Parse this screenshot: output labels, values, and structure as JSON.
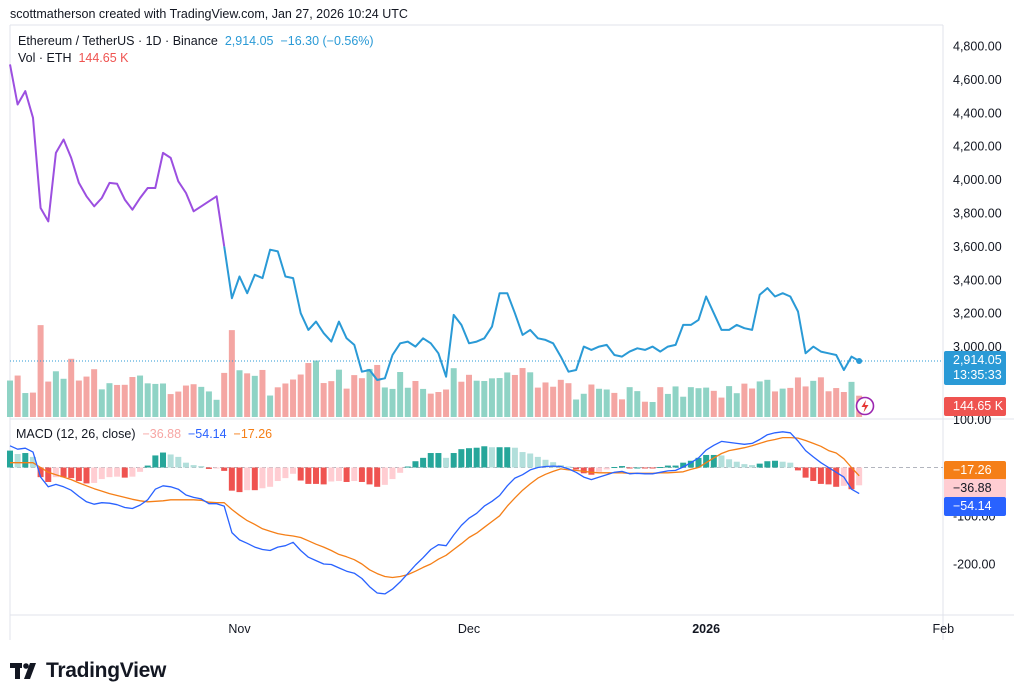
{
  "header": {
    "caption": "scottmatherson created with TradingView.com, Jan 27, 2026 10:24 UTC"
  },
  "legend": {
    "price_title": "Ethereum / TetherUS · 1D · Binance",
    "price_close": "2,914.05",
    "price_change": "−16.30 (−0.56%)",
    "vol_title": "Vol · ETH",
    "vol_value": "144.65 K",
    "macd_title": "MACD (12, 26, close)",
    "macd_hist": "−36.88",
    "macd_line": "−54.14",
    "macd_signal": "−17.26"
  },
  "brand": {
    "logo_text": "TradingView"
  },
  "colors": {
    "price_line": "#2a9ad6",
    "price_line_early": "#9c4fe0",
    "vol_up": "#8fd3c5",
    "vol_down": "#f4a6a3",
    "macd_line": "#2962ff",
    "signal_line": "#f57f17",
    "hist_pos_strong": "#26a69a",
    "hist_pos_weak": "#b2dfdb",
    "hist_neg_strong": "#ef5350",
    "hist_neg_weak": "#ffcdd2",
    "label_price": "#2a9ad6",
    "label_vol": "#ef5350",
    "label_signal": "#f57f17",
    "label_hist": "#ffcdd2",
    "label_macd": "#2962ff"
  },
  "chart_data": [
    {
      "type": "line",
      "title": "Ethereum / TetherUS · 1D · Binance",
      "x_start_date": "2025-10-02",
      "x_ticks": [
        "Nov",
        "Dec",
        "2026",
        "Feb"
      ],
      "ylim": [
        2600,
        4950
      ],
      "y_ticks": [
        "4,800.00",
        "4,600.00",
        "4,400.00",
        "4,200.00",
        "4,000.00",
        "3,800.00",
        "3,600.00",
        "3,400.00",
        "3,200.00",
        "3,000.00"
      ],
      "last_price_label": "2,914.05",
      "countdown_label": "13:35:33",
      "series": [
        {
          "name": "Ethereum / TetherUS",
          "values": [
            4690,
            4450,
            4530,
            4370,
            3830,
            3750,
            4160,
            4240,
            4130,
            3980,
            3900,
            3840,
            3890,
            3980,
            3975,
            3880,
            3820,
            3890,
            3950,
            3950,
            4160,
            4130,
            3990,
            3920,
            3810,
            3840,
            3870,
            3900,
            3600,
            3290,
            3420,
            3320,
            3430,
            3410,
            3580,
            3570,
            3420,
            3410,
            3200,
            3100,
            3150,
            3080,
            3030,
            3150,
            3050,
            3010,
            2850,
            2860,
            2800,
            2810,
            2950,
            3020,
            3030,
            3000,
            3050,
            3020,
            2960,
            2820,
            3190,
            3130,
            3020,
            3030,
            3050,
            3120,
            3320,
            3320,
            3200,
            3070,
            3100,
            3050,
            3040,
            3020,
            2940,
            2850,
            2860,
            3000,
            2980,
            3000,
            3010,
            2950,
            2940,
            2970,
            2990,
            2980,
            3000,
            2970,
            3000,
            3010,
            3130,
            3130,
            3160,
            3300,
            3200,
            3100,
            3100,
            3130,
            3110,
            3100,
            3310,
            3350,
            3300,
            3320,
            3300,
            3210,
            2960,
            3000,
            2970,
            2960,
            2950,
            2860,
            2940,
            2914.05
          ]
        }
      ]
    },
    {
      "type": "bar",
      "title": "Vol · ETH",
      "last_value_label": "144.65 K",
      "series": [
        {
          "name": "Vol · ETH",
          "values": [
            248,
            282,
            163,
            166,
            625,
            241,
            311,
            260,
            396,
            248,
            275,
            325,
            188,
            230,
            218,
            219,
            272,
            282,
            229,
            225,
            228,
            156,
            173,
            214,
            223,
            205,
            174,
            117,
            300,
            591,
            318,
            297,
            280,
            320,
            146,
            202,
            228,
            255,
            289,
            367,
            384,
            231,
            244,
            322,
            193,
            285,
            264,
            327,
            354,
            201,
            191,
            306,
            199,
            245,
            191,
            159,
            170,
            187,
            332,
            240,
            287,
            247,
            245,
            263,
            265,
            303,
            286,
            333,
            304,
            200,
            235,
            206,
            253,
            230,
            119,
            158,
            221,
            192,
            187,
            164,
            120,
            203,
            176,
            104,
            102,
            203,
            157,
            208,
            138,
            203,
            196,
            200,
            178,
            132,
            210,
            162,
            227,
            194,
            242,
            253,
            174,
            193,
            198,
            269,
            208,
            246,
            270,
            175,
            197,
            170,
            239,
            145
          ]
        }
      ]
    },
    {
      "type": "line",
      "title": "MACD (12, 26, close)",
      "ylim": [
        -270,
        115
      ],
      "y_ticks": [
        "100.00",
        "-100.00",
        "-200.00"
      ],
      "last_value_labels": [
        "−17.26",
        "−36.88",
        "−54.14"
      ],
      "series": [
        {
          "name": "MACD",
          "values": [
            45,
            38,
            40,
            32,
            -20,
            -40,
            -35,
            -40,
            -47,
            -60,
            -71,
            -76,
            -73,
            -74,
            -77,
            -83,
            -85,
            -78,
            -67,
            -45,
            -38,
            -40,
            -45,
            -57,
            -62,
            -65,
            -75,
            -75,
            -80,
            -135,
            -150,
            -157,
            -165,
            -170,
            -172,
            -165,
            -162,
            -155,
            -172,
            -186,
            -193,
            -200,
            -201,
            -208,
            -215,
            -219,
            -230,
            -247,
            -260,
            -262,
            -252,
            -237,
            -220,
            -202,
            -187,
            -170,
            -160,
            -162,
            -140,
            -120,
            -105,
            -95,
            -80,
            -70,
            -58,
            -38,
            -22,
            -15,
            -5,
            0,
            2,
            3,
            2,
            -3,
            -10,
            -20,
            -25,
            -20,
            -15,
            -10,
            -8,
            -13,
            -12,
            -13,
            -13,
            -10,
            -7,
            -6,
            1,
            10,
            20,
            36,
            46,
            54,
            52,
            50,
            48,
            50,
            58,
            68,
            72,
            74,
            72,
            55,
            35,
            22,
            10,
            0,
            -10,
            -20,
            -45,
            -54.14
          ]
        },
        {
          "name": "Signal",
          "values": [
            10,
            10,
            10,
            10,
            0,
            -10,
            -15,
            -20,
            -25,
            -32,
            -38,
            -44,
            -49,
            -54,
            -58,
            -62,
            -66,
            -69,
            -71,
            -70,
            -69,
            -67,
            -67,
            -67,
            -67,
            -68,
            -72,
            -73,
            -73,
            -87,
            -99,
            -110,
            -118,
            -127,
            -132,
            -137,
            -140,
            -142,
            -145,
            -152,
            -159,
            -165,
            -172,
            -180,
            -185,
            -191,
            -200,
            -212,
            -220,
            -226,
            -228,
            -226,
            -222,
            -215,
            -207,
            -200,
            -190,
            -182,
            -170,
            -158,
            -145,
            -136,
            -124,
            -112,
            -100,
            -80,
            -63,
            -47,
            -34,
            -22,
            -14,
            -8,
            -3,
            -5,
            -6,
            -8,
            -10,
            -11,
            -11,
            -11,
            -11,
            -12,
            -12,
            -12,
            -12,
            -11,
            -11,
            -10,
            -9,
            -4,
            0,
            10,
            20,
            29,
            35,
            38,
            41,
            45,
            50,
            55,
            58,
            62,
            62,
            61,
            56,
            50,
            44,
            35,
            30,
            18,
            0,
            -17.26
          ]
        },
        {
          "name": "Histogram",
          "values": [
            35,
            28,
            30,
            22,
            -20,
            -30,
            -20,
            -20,
            -22,
            -28,
            -33,
            -32,
            -24,
            -20,
            -19,
            -21,
            -19,
            -9,
            4,
            25,
            31,
            27,
            22,
            10,
            5,
            3,
            -3,
            -2,
            -7,
            -48,
            -51,
            -47,
            -47,
            -43,
            -40,
            -28,
            -22,
            -13,
            -27,
            -34,
            -34,
            -35,
            -29,
            -28,
            -30,
            -28,
            -30,
            -35,
            -40,
            -36,
            -24,
            -11,
            2,
            13,
            20,
            30,
            30,
            20,
            30,
            38,
            40,
            41,
            44,
            42,
            42,
            42,
            41,
            32,
            29,
            22,
            16,
            11,
            5,
            2,
            -4,
            -12,
            -15,
            -9,
            -4,
            1,
            3,
            -1,
            0,
            -1,
            -1,
            1,
            4,
            4,
            10,
            14,
            20,
            26,
            26,
            25,
            17,
            12,
            7,
            5,
            8,
            13,
            14,
            12,
            10,
            -6,
            -21,
            -28,
            -34,
            -35,
            -40,
            -38,
            -45,
            -36.88
          ]
        }
      ]
    }
  ]
}
